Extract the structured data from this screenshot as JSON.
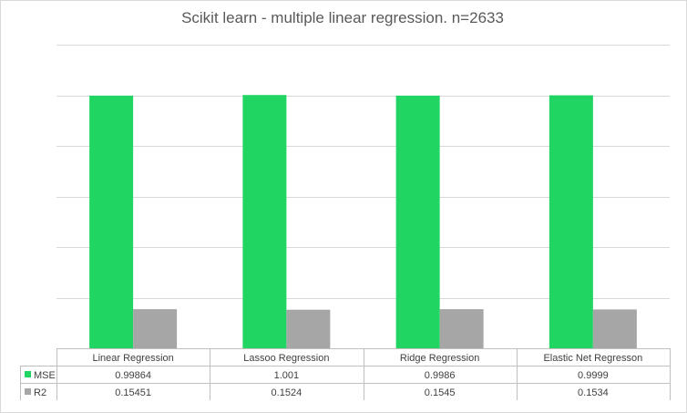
{
  "chart_data": {
    "type": "bar",
    "title": "Scikit learn - multiple linear regression. n=2633",
    "categories": [
      "Linear Regression",
      "Lassoo Regression",
      "Ridge Regression",
      "Elastic Net Regresson"
    ],
    "series": [
      {
        "name": "MSE",
        "values": [
          0.99864,
          1.001,
          0.9986,
          0.9999
        ],
        "labels": [
          "0.99864",
          "1.001",
          "0.9986",
          "0.9999"
        ],
        "color": "#21d562"
      },
      {
        "name": "R2",
        "values": [
          0.15451,
          0.1524,
          0.1545,
          0.1534
        ],
        "labels": [
          "0.15451",
          "0.1524",
          "0.1545",
          "0.1534"
        ],
        "color": "#a6a6a6"
      }
    ],
    "ylim": [
      0,
      1.2
    ],
    "grid": true,
    "legend": "data-table"
  }
}
